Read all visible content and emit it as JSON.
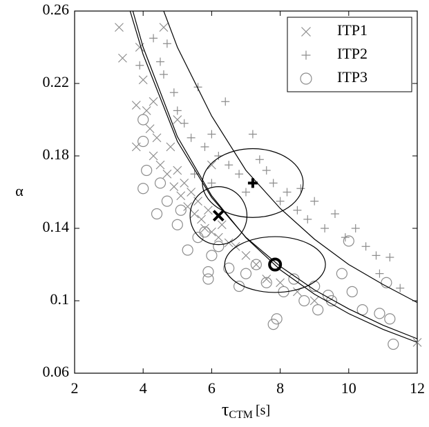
{
  "chart_data": {
    "type": "scatter",
    "xlabel": "τ",
    "xlabel_sub": "CTM",
    "xlabel_unit": "[s]",
    "ylabel": "α",
    "xlim": [
      2,
      12
    ],
    "xticks": [
      2,
      4,
      6,
      8,
      10,
      12
    ],
    "ylim": [
      0.06,
      0.26
    ],
    "yticks": [
      0.06,
      0.1,
      0.14,
      0.18,
      0.22,
      0.26
    ],
    "legend": "top-right",
    "series": [
      {
        "name": "ITP1",
        "color": "#8c8c8c",
        "marker": "x",
        "x": [
          3.3,
          3.4,
          3.9,
          3.8,
          3.8,
          4.0,
          4.1,
          4.2,
          4.3,
          4.4,
          4.6,
          4.5,
          4.7,
          4.8,
          4.9,
          5.0,
          5.1,
          5.2,
          5.3,
          5.4,
          5.5,
          5.6,
          5.7,
          5.8,
          5.9,
          6.0,
          6.2,
          6.3,
          6.5,
          6.7,
          7.0,
          7.3,
          7.6,
          8.0,
          8.5,
          9.0,
          12.0,
          5.0,
          4.3,
          6.0
        ],
        "values": [
          0.251,
          0.234,
          0.24,
          0.208,
          0.185,
          0.222,
          0.205,
          0.195,
          0.18,
          0.19,
          0.251,
          0.175,
          0.17,
          0.185,
          0.163,
          0.172,
          0.158,
          0.165,
          0.152,
          0.16,
          0.148,
          0.155,
          0.145,
          0.14,
          0.15,
          0.138,
          0.135,
          0.142,
          0.132,
          0.13,
          0.125,
          0.12,
          0.112,
          0.11,
          0.105,
          0.1,
          0.077,
          0.2,
          0.21,
          0.175
        ],
        "mean": {
          "x": 6.2,
          "y": 0.147
        },
        "ellipse": {
          "cx": 6.2,
          "cy": 0.147,
          "rx": 0.83,
          "ry": 0.016
        },
        "curve": {
          "x": [
            3.7,
            4,
            5,
            6,
            7,
            8,
            9,
            10,
            11,
            12
          ],
          "y": [
            0.26,
            0.24,
            0.1906,
            0.158,
            0.1348,
            0.1171,
            0.1036,
            0.0929,
            0.0842,
            0.077
          ]
        }
      },
      {
        "name": "ITP2",
        "color": "#8c8c8c",
        "marker": "+",
        "x": [
          3.9,
          4.3,
          4.5,
          4.6,
          4.7,
          4.9,
          5.0,
          5.2,
          5.4,
          5.6,
          5.8,
          6.0,
          6.2,
          6.4,
          6.5,
          6.8,
          7.2,
          7.0,
          7.4,
          7.6,
          7.8,
          8.0,
          8.2,
          8.5,
          8.8,
          9.0,
          9.3,
          9.6,
          9.9,
          10.2,
          10.5,
          10.8,
          11.2,
          11.5,
          10.9,
          8.6,
          6.0,
          5.5
        ],
        "values": [
          0.23,
          0.245,
          0.232,
          0.225,
          0.242,
          0.215,
          0.205,
          0.198,
          0.19,
          0.218,
          0.185,
          0.192,
          0.18,
          0.21,
          0.175,
          0.17,
          0.192,
          0.16,
          0.178,
          0.172,
          0.165,
          0.155,
          0.16,
          0.15,
          0.145,
          0.155,
          0.14,
          0.148,
          0.135,
          0.14,
          0.13,
          0.125,
          0.124,
          0.107,
          0.115,
          0.162,
          0.165,
          0.17
        ],
        "mean": {
          "x": 7.2,
          "y": 0.165
        },
        "ellipse": {
          "cx": 7.2,
          "cy": 0.165,
          "rx": 1.47,
          "ry": 0.019
        },
        "curve": {
          "x": [
            4.6,
            5,
            6,
            7,
            8,
            9,
            10,
            11,
            12
          ],
          "y": [
            0.26,
            0.24,
            0.202,
            0.172,
            0.151,
            0.134,
            0.12,
            0.109,
            0.099
          ]
        }
      },
      {
        "name": "ITP3",
        "color": "#8c8c8c",
        "marker": "o",
        "x": [
          4.0,
          4.0,
          4.1,
          4.0,
          4.4,
          4.5,
          4.7,
          5.0,
          5.1,
          5.3,
          5.6,
          5.8,
          5.9,
          6.0,
          6.2,
          6.5,
          6.8,
          7.0,
          7.3,
          7.6,
          7.8,
          7.9,
          8.1,
          8.4,
          8.7,
          9.0,
          9.1,
          9.4,
          9.8,
          10.0,
          10.1,
          10.4,
          10.9,
          11.1,
          11.2,
          11.3,
          9.5,
          5.9
        ],
        "values": [
          0.2,
          0.188,
          0.172,
          0.162,
          0.148,
          0.165,
          0.155,
          0.142,
          0.15,
          0.128,
          0.135,
          0.138,
          0.112,
          0.125,
          0.13,
          0.118,
          0.108,
          0.115,
          0.12,
          0.11,
          0.087,
          0.09,
          0.105,
          0.112,
          0.1,
          0.108,
          0.095,
          0.103,
          0.115,
          0.133,
          0.105,
          0.095,
          0.093,
          0.11,
          0.09,
          0.076,
          0.1,
          0.116
        ],
        "mean": {
          "x": 7.85,
          "y": 0.12
        },
        "ellipse": {
          "cx": 7.85,
          "cy": 0.12,
          "rx": 1.47,
          "ry": 0.0154
        },
        "curve": {
          "x": [
            3.62,
            4,
            5,
            6,
            7,
            8,
            9,
            10,
            11,
            12
          ],
          "y": [
            0.26,
            0.236,
            0.188,
            0.157,
            0.135,
            0.119,
            0.106,
            0.0955,
            0.0865,
            0.079
          ]
        }
      }
    ]
  }
}
